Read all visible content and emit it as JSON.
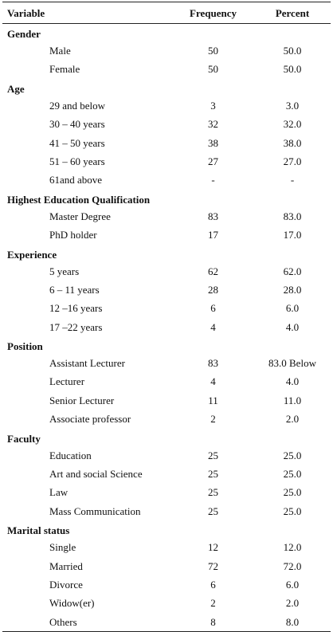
{
  "header": {
    "variable": "Variable",
    "frequency": "Frequency",
    "percent": "Percent"
  },
  "sections": [
    {
      "title": "Gender",
      "rows": [
        {
          "label": "Male",
          "frequency": "50",
          "percent": "50.0"
        },
        {
          "label": "Female",
          "frequency": "50",
          "percent": "50.0"
        }
      ]
    },
    {
      "title": "Age",
      "rows": [
        {
          "label": "29 and below",
          "frequency": "3",
          "percent": "3.0"
        },
        {
          "label": "30 – 40 years",
          "frequency": "32",
          "percent": "32.0"
        },
        {
          "label": "41 – 50 years",
          "frequency": "38",
          "percent": "38.0"
        },
        {
          "label": "51 – 60 years",
          "frequency": "27",
          "percent": "27.0"
        },
        {
          "label": "61and above",
          "frequency": "-",
          "percent": "-"
        }
      ]
    },
    {
      "title": "Highest Education Qualification",
      "rows": [
        {
          "label": "Master Degree",
          "frequency": "83",
          "percent": "83.0"
        },
        {
          "label": "PhD holder",
          "frequency": "17",
          "percent": "17.0"
        }
      ]
    },
    {
      "title": "Experience",
      "rows": [
        {
          "label": "5 years",
          "frequency": "62",
          "percent": "62.0"
        },
        {
          "label": "6 – 11 years",
          "frequency": "28",
          "percent": "28.0"
        },
        {
          "label": "12 –16 years",
          "frequency": "6",
          "percent": "6.0"
        },
        {
          "label": "17 –22 years",
          "frequency": "4",
          "percent": "4.0"
        }
      ]
    },
    {
      "title": "Position",
      "rows": [
        {
          "label": "Assistant Lecturer",
          "frequency": "83",
          "percent": "83.0 Below"
        },
        {
          "label": "Lecturer",
          "frequency": "4",
          "percent": "4.0"
        },
        {
          "label": "Senior Lecturer",
          "frequency": "11",
          "percent": "11.0"
        },
        {
          "label": "Associate professor",
          "frequency": "2",
          "percent": "2.0"
        }
      ]
    },
    {
      "title": "Faculty",
      "rows": [
        {
          "label": "Education",
          "frequency": "25",
          "percent": "25.0"
        },
        {
          "label": "Art and social Science",
          "frequency": "25",
          "percent": "25.0"
        },
        {
          "label": "Law",
          "frequency": "25",
          "percent": "25.0"
        },
        {
          "label": "Mass Communication",
          "frequency": "25",
          "percent": "25.0"
        }
      ]
    },
    {
      "title": "Marital status",
      "rows": [
        {
          "label": "Single",
          "frequency": "12",
          "percent": "12.0"
        },
        {
          "label": "Married",
          "frequency": "72",
          "percent": "72.0"
        },
        {
          "label": "Divorce",
          "frequency": "6",
          "percent": "6.0"
        },
        {
          "label": "Widow(er)",
          "frequency": "2",
          "percent": "2.0"
        },
        {
          "label": "Others",
          "frequency": "8",
          "percent": "8.0"
        }
      ]
    }
  ]
}
